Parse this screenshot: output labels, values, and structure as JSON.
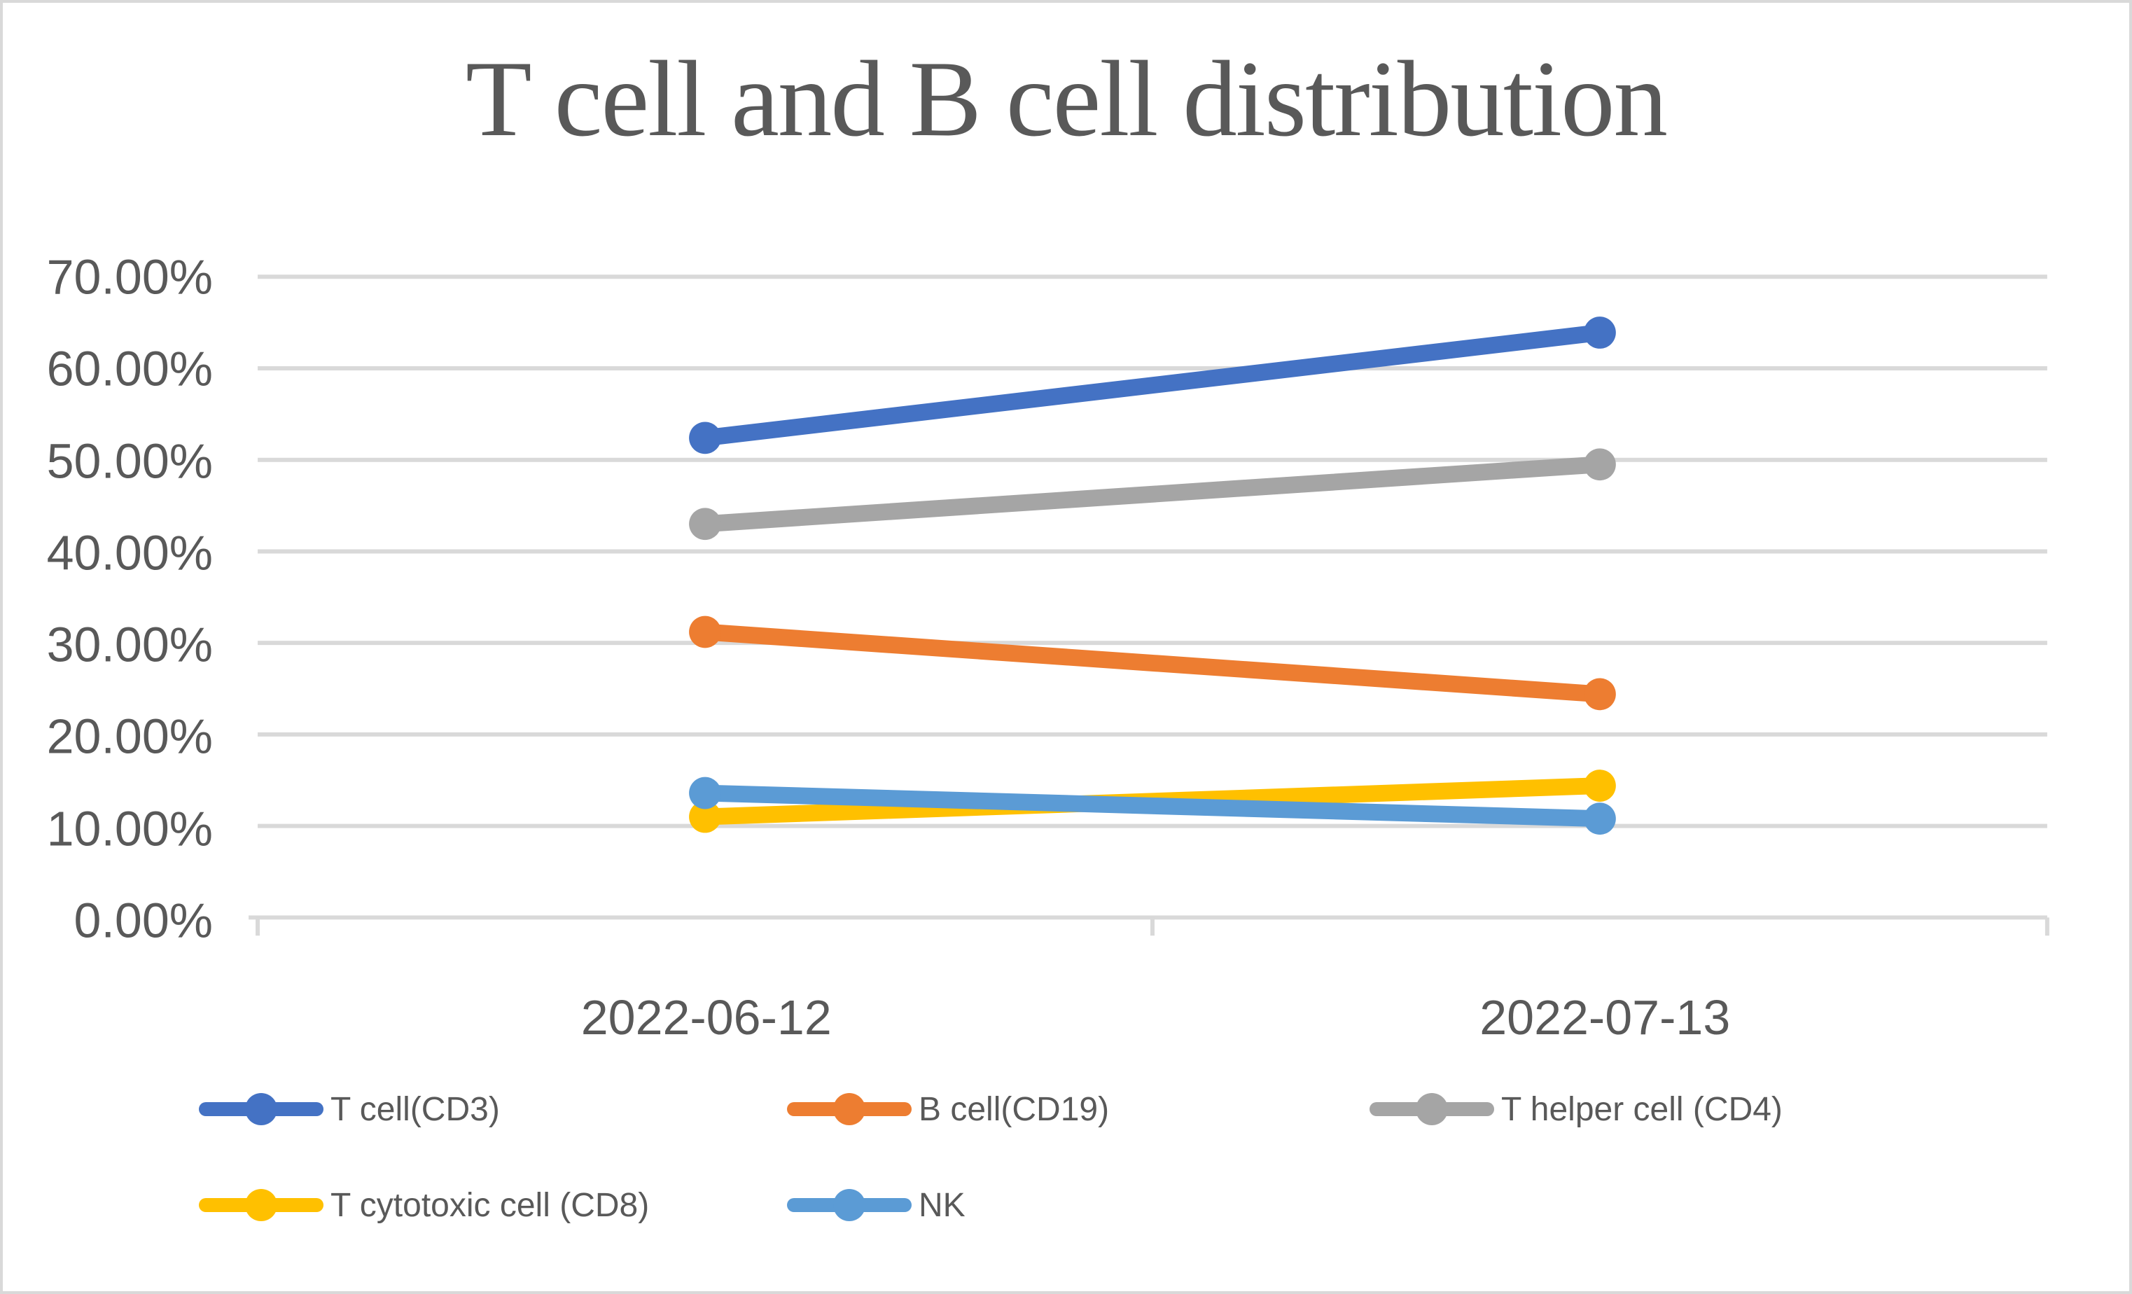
{
  "chart_data": {
    "type": "line",
    "title": "T cell and B cell distribution",
    "categories": [
      "2022-06-12",
      "2022-07-13"
    ],
    "series": [
      {
        "name": "T cell(CD3)",
        "color": "#4472C4",
        "values": [
          52.4,
          63.9
        ]
      },
      {
        "name": "B cell(CD19)",
        "color": "#ED7D31",
        "values": [
          31.2,
          24.4
        ]
      },
      {
        "name": "T helper cell (CD4)",
        "color": "#A5A5A5",
        "values": [
          43.0,
          49.5
        ]
      },
      {
        "name": "T cytotoxic cell (CD8)",
        "color": "#FFC000",
        "values": [
          11.0,
          14.4
        ]
      },
      {
        "name": "NK",
        "color": "#5B9BD5",
        "values": [
          13.6,
          10.8
        ]
      }
    ],
    "unit": "percent",
    "y_axis": {
      "min": 0,
      "max": 70,
      "step": 10,
      "tick_labels": [
        "70.00%",
        "60.00%",
        "50.00%",
        "40.00%",
        "30.00%",
        "20.00%",
        "10.00%",
        "0.00%"
      ]
    },
    "grid": true,
    "legend_position": "bottom",
    "legend_layout_rows": [
      [
        0,
        1,
        2
      ],
      [
        3,
        4
      ]
    ]
  },
  "colors": {
    "background": "#FFFFFF",
    "canvas_border": "#D9D9D9",
    "gridline": "#D9D9D9",
    "axis_line": "#D9D9D9",
    "axis_text": "#595959",
    "title_text": "#595959",
    "legend_text": "#595959"
  }
}
